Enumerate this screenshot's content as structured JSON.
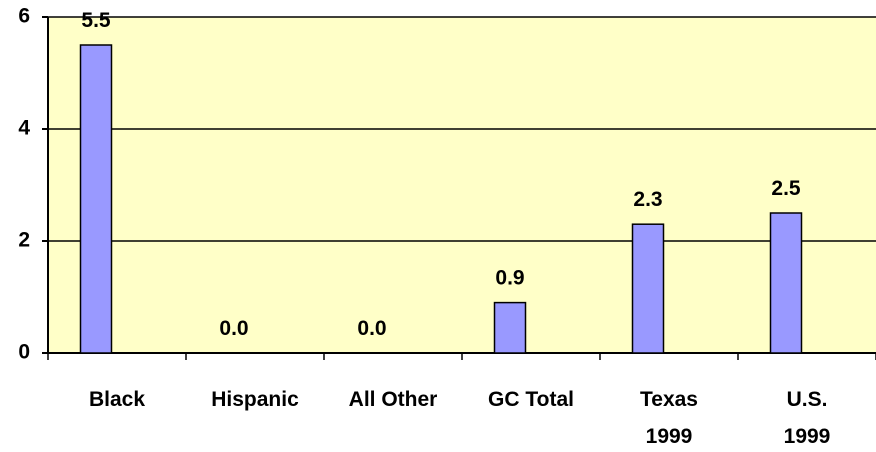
{
  "chart_data": {
    "type": "bar",
    "categories": [
      "Black",
      "Hispanic",
      "All Other",
      "GC Total",
      "Texas\n1999",
      "U.S.\n1999"
    ],
    "values": [
      5.5,
      0,
      0,
      0.9,
      2.3,
      2.5
    ],
    "value_labels": [
      "5.5",
      "0.0",
      "0.0",
      "0.9",
      "2.3",
      "2.5"
    ],
    "color": "#9999ff",
    "ylim": [
      0,
      6
    ],
    "yticks": [
      0,
      2,
      4,
      6
    ],
    "grid": true
  }
}
